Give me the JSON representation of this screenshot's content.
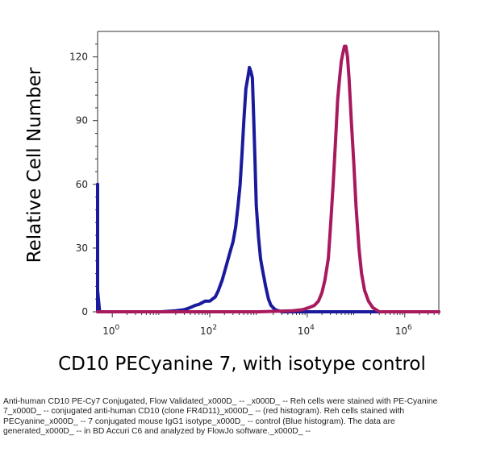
{
  "chart_data": {
    "type": "area",
    "title": "",
    "ylabel": "Relative Cell Number",
    "xlabel": "CD10 PECyanine 7, with isotype control",
    "xscale": "log",
    "xlim": [
      0.5,
      5000000
    ],
    "ylim": [
      0,
      132
    ],
    "yticks": [
      0,
      30,
      60,
      90,
      120
    ],
    "ytick_labels": [
      "0",
      "30",
      "60",
      "90",
      "120"
    ],
    "xticks": [
      {
        "base": "10",
        "exp": "0"
      },
      {
        "base": "10",
        "exp": "2"
      },
      {
        "base": "10",
        "exp": "4"
      },
      {
        "base": "10",
        "exp": "6"
      }
    ],
    "xticks_values": [
      1,
      100,
      10000,
      1000000
    ],
    "grid": false,
    "series": [
      {
        "color": "#1a1a9c",
        "x": [
          0.5,
          0.5,
          0.5,
          0.55,
          0.7,
          1,
          3,
          10,
          20,
          30,
          40,
          50,
          60,
          80,
          100,
          130,
          150,
          180,
          220,
          260,
          300,
          340,
          380,
          420,
          460,
          500,
          550,
          600,
          650,
          700,
          750,
          800,
          850,
          900,
          1000,
          1100,
          1200,
          1400,
          1600,
          1800,
          2200,
          3000,
          5000,
          10000,
          100000,
          5000000
        ],
        "y": [
          0,
          60,
          10,
          0,
          0,
          0,
          0,
          0,
          0.5,
          1,
          2,
          3,
          3.5,
          5,
          5,
          7,
          10,
          15,
          22,
          28,
          33,
          40,
          50,
          60,
          75,
          90,
          105,
          110,
          115,
          113,
          110,
          90,
          70,
          50,
          35,
          25,
          20,
          12,
          6,
          3,
          1,
          0,
          0,
          0,
          0,
          0
        ]
      },
      {
        "color": "#a8195e",
        "x": [
          0.5,
          100,
          1000,
          5000,
          8000,
          11000,
          14000,
          17000,
          20000,
          23000,
          27000,
          30000,
          34000,
          38000,
          42000,
          46000,
          50000,
          54000,
          58000,
          62000,
          67000,
          72000,
          80000,
          90000,
          100000,
          115000,
          130000,
          150000,
          180000,
          220000,
          300000,
          5000000
        ],
        "y": [
          0,
          0,
          0,
          0.5,
          1,
          2,
          3,
          5,
          9,
          15,
          25,
          40,
          60,
          80,
          100,
          110,
          118,
          122,
          125,
          125,
          120,
          110,
          90,
          70,
          50,
          30,
          18,
          10,
          5,
          2,
          0,
          0
        ]
      }
    ]
  },
  "caption": {
    "text": "Anti-human CD10 PE-Cy7 Conjugated, Flow Validated_x000D_ -- _x000D_ -- Reh cells were stained with PE-Cyanine 7_x000D_ -- conjugated anti-human CD10 (clone FR4D11)_x000D_ -- (red histogram). Reh cells stained with PECyanine_x000D_ -- 7 conjugated mouse IgG1 isotype_x000D_ -- control (Blue histogram). The data are generated_x000D_ -- in BD Accuri C6 and analyzed by FlowJo software._x000D_ --"
  }
}
